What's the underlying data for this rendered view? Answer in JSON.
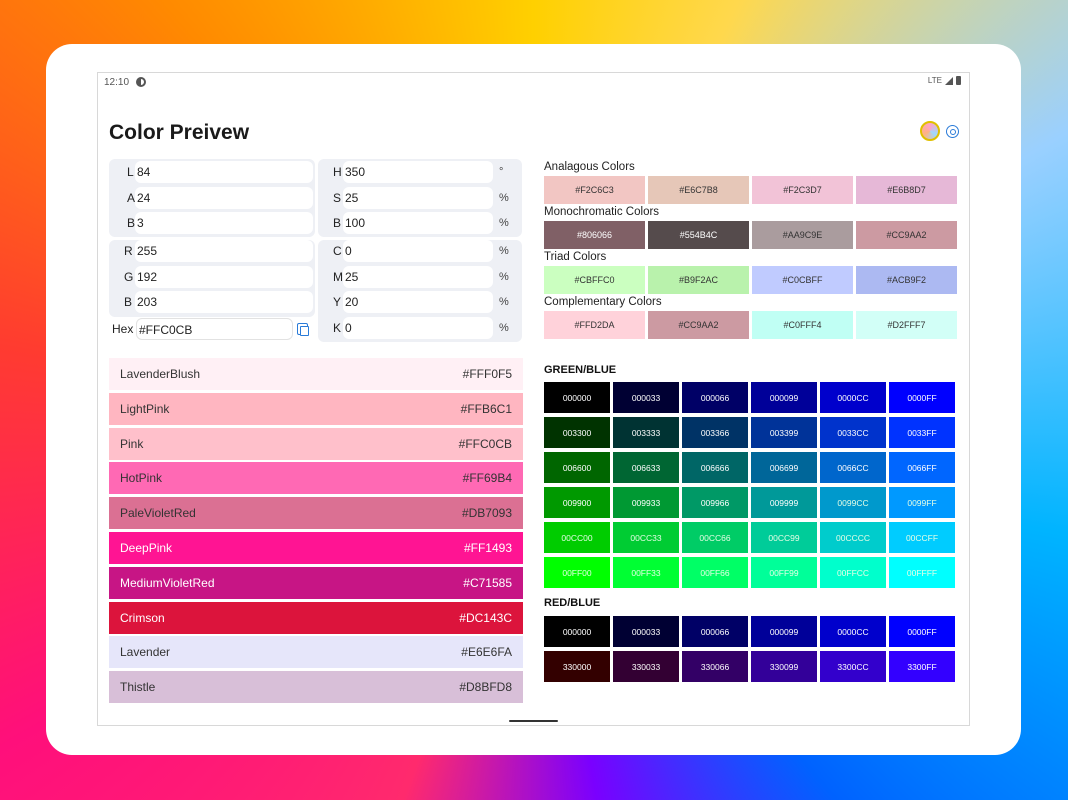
{
  "status": {
    "time": "12:10",
    "network": "LTE"
  },
  "app": {
    "title": "Color Preivew"
  },
  "lab": {
    "l_label": "L",
    "l": "84",
    "a_label": "A",
    "a": "24",
    "b_label": "B",
    "b": "3"
  },
  "hsb": {
    "h_label": "H",
    "h": "350",
    "h_unit": "°",
    "s_label": "S",
    "s": "25",
    "s_unit": "%",
    "b_label": "B",
    "b": "100",
    "b_unit": "%"
  },
  "rgb": {
    "r_label": "R",
    "r": "255",
    "g_label": "G",
    "g": "192",
    "b_label": "B",
    "b": "203",
    "hex_label": "Hex",
    "hex": "#FFC0CB"
  },
  "cmyk": {
    "c_label": "C",
    "c": "0",
    "c_unit": "%",
    "m_label": "M",
    "m": "25",
    "m_unit": "%",
    "y_label": "Y",
    "y": "20",
    "y_unit": "%",
    "k_label": "K",
    "k": "0",
    "k_unit": "%"
  },
  "named_colors": [
    {
      "name": "LavenderBlush",
      "hex": "#FFF0F5",
      "bg": "#FFF0F5",
      "fg": "#333333"
    },
    {
      "name": "LightPink",
      "hex": "#FFB6C1",
      "bg": "#FFB6C1",
      "fg": "#333333"
    },
    {
      "name": "Pink",
      "hex": "#FFC0CB",
      "bg": "#FFC0CB",
      "fg": "#333333"
    },
    {
      "name": "HotPink",
      "hex": "#FF69B4",
      "bg": "#FF69B4",
      "fg": "#333333"
    },
    {
      "name": "PaleVioletRed",
      "hex": "#DB7093",
      "bg": "#DB7093",
      "fg": "#333333"
    },
    {
      "name": "DeepPink",
      "hex": "#FF1493",
      "bg": "#FF1493",
      "fg": "#ffffff"
    },
    {
      "name": "MediumVioletRed",
      "hex": "#C71585",
      "bg": "#C71585",
      "fg": "#ffffff"
    },
    {
      "name": "Crimson",
      "hex": "#DC143C",
      "bg": "#DC143C",
      "fg": "#ffffff"
    },
    {
      "name": "Lavender",
      "hex": "#E6E6FA",
      "bg": "#E6E6FA",
      "fg": "#333333"
    },
    {
      "name": "Thistle",
      "hex": "#D8BFD8",
      "bg": "#D8BFD8",
      "fg": "#333333"
    }
  ],
  "schemes": [
    {
      "label": "Analagous Colors",
      "colors": [
        "#F2C6C3",
        "#E6C7B8",
        "#F2C3D7",
        "#E6B8D7"
      ]
    },
    {
      "label": "Monochromatic Colors",
      "colors": [
        "#806066",
        "#554B4C",
        "#AA9C9E",
        "#CC9AA2"
      ]
    },
    {
      "label": "Triad Colors",
      "colors": [
        "#CBFFC0",
        "#B9F2AC",
        "#C0CBFF",
        "#ACB9F2"
      ]
    },
    {
      "label": "Complementary Colors",
      "colors": [
        "#FFD2DA",
        "#CC9AA2",
        "#C0FFF4",
        "#D2FFF7"
      ]
    }
  ],
  "green_blue": {
    "title": "GREEN/BLUE",
    "cells": [
      "000000",
      "000033",
      "000066",
      "000099",
      "0000CC",
      "0000FF",
      "003300",
      "003333",
      "003366",
      "003399",
      "0033CC",
      "0033FF",
      "006600",
      "006633",
      "006666",
      "006699",
      "0066CC",
      "0066FF",
      "009900",
      "009933",
      "009966",
      "009999",
      "0099CC",
      "0099FF",
      "00CC00",
      "00CC33",
      "00CC66",
      "00CC99",
      "00CCCC",
      "00CCFF",
      "00FF00",
      "00FF33",
      "00FF66",
      "00FF99",
      "00FFCC",
      "00FFFF"
    ]
  },
  "red_blue": {
    "title": "RED/BLUE",
    "cells": [
      "000000",
      "000033",
      "000066",
      "000099",
      "0000CC",
      "0000FF",
      "330000",
      "330033",
      "330066",
      "330099",
      "3300CC",
      "3300FF"
    ]
  }
}
